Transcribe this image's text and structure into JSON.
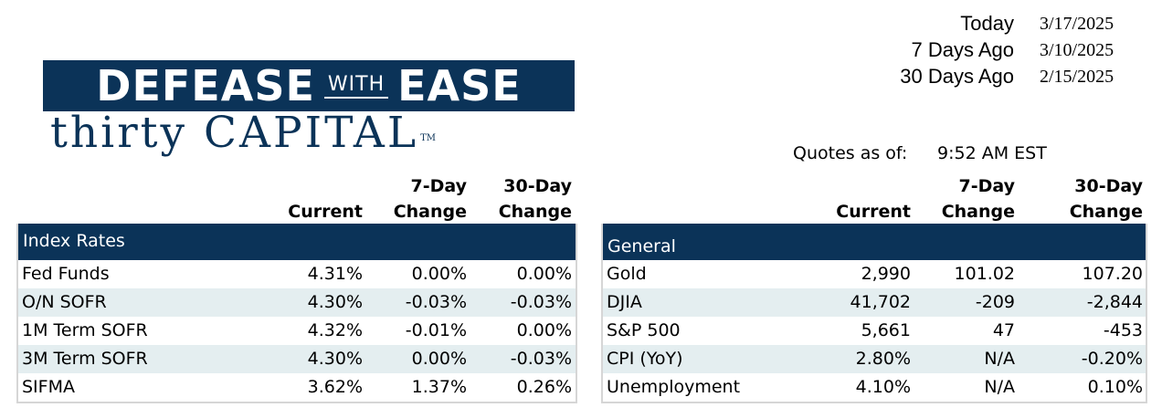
{
  "logo": {
    "word1": "DEFEASE",
    "with": "WITH",
    "word2": "EASE",
    "tagline": "thirty CAPITAL",
    "tm": "TM"
  },
  "dates": [
    {
      "label": "Today",
      "value": "3/17/2025"
    },
    {
      "label": "7 Days Ago",
      "value": "3/10/2025"
    },
    {
      "label": "30 Days Ago",
      "value": "2/15/2025"
    }
  ],
  "quotes": {
    "label": "Quotes as of:",
    "time": "9:52 AM EST"
  },
  "headers": {
    "current": "Current",
    "change7_top": "7-Day",
    "change7_bottom": "Change",
    "change30_top": "30-Day",
    "change30_bottom": "Change"
  },
  "index_rates": {
    "title": "Index Rates",
    "rows": [
      {
        "name": "Fed Funds",
        "current": "4.31%",
        "change7": "0.00%",
        "change30": "0.00%"
      },
      {
        "name": "O/N SOFR",
        "current": "4.30%",
        "change7": "-0.03%",
        "change30": "-0.03%"
      },
      {
        "name": "1M Term SOFR",
        "current": "4.32%",
        "change7": "-0.01%",
        "change30": "0.00%"
      },
      {
        "name": "3M Term SOFR",
        "current": "4.30%",
        "change7": "0.00%",
        "change30": "-0.03%"
      },
      {
        "name": "SIFMA",
        "current": "3.62%",
        "change7": "1.37%",
        "change30": "0.26%"
      }
    ]
  },
  "general": {
    "title": "General",
    "rows": [
      {
        "name": "Gold",
        "current": "2,990",
        "change7": "101.02",
        "change30": "107.20"
      },
      {
        "name": "DJIA",
        "current": "41,702",
        "change7": "-209",
        "change30": "-2,844"
      },
      {
        "name": "S&P 500",
        "current": "5,661",
        "change7": "47",
        "change30": "-453"
      },
      {
        "name": "CPI (YoY)",
        "current": "2.80%",
        "change7": "N/A",
        "change30": "-0.20%"
      },
      {
        "name": "Unemployment",
        "current": "4.10%",
        "change7": "N/A",
        "change30": "0.10%"
      }
    ]
  },
  "colors": {
    "navy": "#0b3358",
    "row_alt": "#e4eef0"
  }
}
